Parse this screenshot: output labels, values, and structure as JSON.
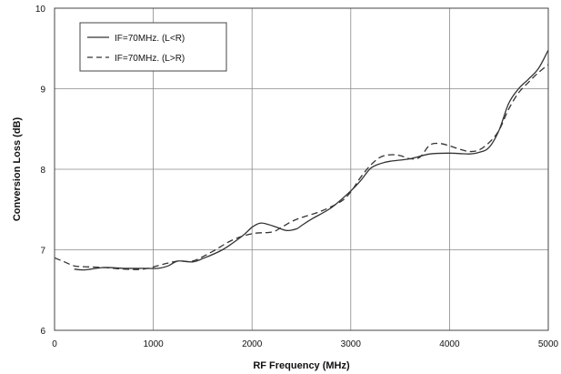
{
  "chart_data": {
    "type": "line",
    "xlabel": "RF Frequency (MHz)",
    "ylabel": "Conversion Loss (dB)",
    "xlim": [
      0,
      5000
    ],
    "ylim": [
      6,
      10
    ],
    "xticks": [
      0,
      1000,
      2000,
      3000,
      4000,
      5000
    ],
    "xtick_labels": [
      "0",
      "1000",
      "2000",
      "3000",
      "4000",
      "5000"
    ],
    "yticks": [
      6,
      7,
      8,
      9,
      10
    ],
    "ytick_labels": [
      "6",
      "7",
      "8",
      "9",
      "10"
    ],
    "grid": true,
    "legend_position": "top-left",
    "series": [
      {
        "name": "IF=70MHz. (L<R)",
        "style": "solid",
        "color": "#333333",
        "x": [
          200,
          300,
          500,
          700,
          900,
          1050,
          1150,
          1250,
          1400,
          1500,
          1700,
          1900,
          2000,
          2080,
          2150,
          2250,
          2350,
          2450,
          2500,
          2600,
          2800,
          3000,
          3100,
          3200,
          3300,
          3400,
          3600,
          3800,
          4000,
          4200,
          4300,
          4400,
          4500,
          4600,
          4700,
          4800,
          4900,
          5000
        ],
        "y": [
          6.76,
          6.75,
          6.78,
          6.77,
          6.77,
          6.77,
          6.8,
          6.86,
          6.85,
          6.89,
          7.0,
          7.17,
          7.28,
          7.33,
          7.32,
          7.28,
          7.24,
          7.26,
          7.3,
          7.38,
          7.52,
          7.73,
          7.86,
          8.01,
          8.07,
          8.1,
          8.13,
          8.19,
          8.2,
          8.19,
          8.21,
          8.27,
          8.48,
          8.82,
          9.0,
          9.12,
          9.25,
          9.48
        ]
      },
      {
        "name": "IF=70MHz. (L>R)",
        "style": "dashed",
        "color": "#333333",
        "x": [
          0,
          100,
          200,
          300,
          500,
          700,
          900,
          1100,
          1250,
          1400,
          1600,
          1800,
          2000,
          2200,
          2300,
          2400,
          2500,
          2700,
          2900,
          3000,
          3100,
          3200,
          3300,
          3400,
          3500,
          3600,
          3700,
          3800,
          3900,
          4000,
          4100,
          4200,
          4300,
          4400,
          4500,
          4600,
          4700,
          4800,
          4900,
          5000
        ],
        "y": [
          6.9,
          6.85,
          6.8,
          6.79,
          6.78,
          6.76,
          6.76,
          6.82,
          6.86,
          6.86,
          6.98,
          7.12,
          7.2,
          7.22,
          7.28,
          7.35,
          7.4,
          7.48,
          7.6,
          7.72,
          7.9,
          8.05,
          8.15,
          8.18,
          8.17,
          8.13,
          8.15,
          8.3,
          8.32,
          8.29,
          8.25,
          8.22,
          8.24,
          8.33,
          8.48,
          8.75,
          8.95,
          9.08,
          9.2,
          9.3
        ]
      }
    ]
  }
}
